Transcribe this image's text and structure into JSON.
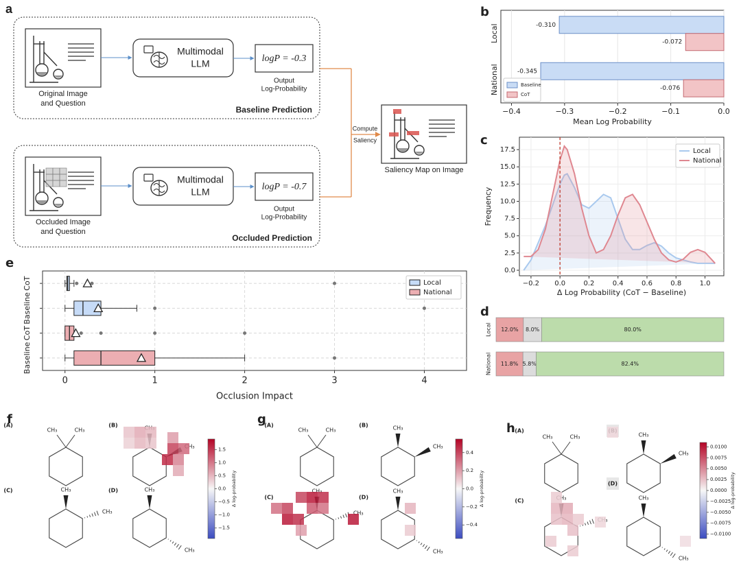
{
  "figure": {
    "panel_a": {
      "label": "a",
      "baseline": {
        "image_caption": [
          "Original Image",
          "and Question"
        ],
        "model": [
          "Multimodal",
          "LLM"
        ],
        "logp": "logP = -0.3",
        "output": [
          "Output",
          "Log-Probability"
        ],
        "title": "Baseline Prediction"
      },
      "occluded": {
        "image_caption": [
          "Occluded Image",
          "and Question"
        ],
        "model": [
          "Multimodal",
          "LLM"
        ],
        "logp": "logP = -0.7",
        "output": [
          "Output",
          "Log-Probability"
        ],
        "title": "Occluded Prediction"
      },
      "compute": [
        "Compute",
        "Saliency"
      ],
      "result": "Saliency Map on Image"
    }
  },
  "chart_data": [
    {
      "type": "hbar",
      "panel_label": "b",
      "categories": [
        "Local",
        "National"
      ],
      "series": [
        {
          "name": "Baseline",
          "color": "#c9dcf5",
          "edge": "#6b8fc7",
          "values": [
            -0.31,
            -0.345
          ],
          "value_labels": [
            "-0.310",
            "-0.345"
          ]
        },
        {
          "name": "CoT",
          "color": "#f2c4c6",
          "edge": "#c46a72",
          "values": [
            -0.072,
            -0.076
          ],
          "value_labels": [
            "-0.072",
            "-0.076"
          ]
        }
      ],
      "xlim": [
        -0.42,
        0
      ],
      "xticks": [
        {
          "value": -0.4,
          "label": "−0.4"
        },
        {
          "value": -0.3,
          "label": "−0.3"
        },
        {
          "value": -0.2,
          "label": "−0.2"
        },
        {
          "value": -0.1,
          "label": "−0.1"
        },
        {
          "value": 0,
          "label": "0.0"
        }
      ],
      "xlabel": "Mean Log Probability",
      "grid": true,
      "legend": "lower left"
    },
    {
      "type": "area",
      "panel_label": "c",
      "x": [
        -0.25,
        -0.2,
        -0.15,
        -0.1,
        -0.05,
        0,
        0.03,
        0.05,
        0.1,
        0.15,
        0.2,
        0.25,
        0.3,
        0.35,
        0.4,
        0.45,
        0.5,
        0.55,
        0.6,
        0.65,
        0.7,
        0.75,
        0.8,
        0.85,
        0.9,
        0.95,
        1.0,
        1.07
      ],
      "series": [
        {
          "name": "Local",
          "color": "#a9c9ee",
          "values": [
            0,
            1.5,
            4,
            6.5,
            9.5,
            12.5,
            13.8,
            14,
            12,
            9.5,
            9,
            10,
            11,
            10.5,
            7.5,
            4.5,
            3,
            3,
            3.6,
            4,
            3.5,
            2.5,
            1.8,
            1.5,
            1.2,
            1,
            1,
            1
          ]
        },
        {
          "name": "National",
          "color": "#df8790",
          "values": [
            2,
            2,
            3,
            6,
            11,
            16,
            18,
            17.5,
            14,
            9,
            5,
            2.5,
            3,
            5,
            8,
            10.5,
            11,
            9.5,
            7,
            4.5,
            2.5,
            1.5,
            1.2,
            1.6,
            2.6,
            3,
            2.6,
            1
          ]
        }
      ],
      "vline": 0,
      "vline_color": "#c0392b",
      "xlim": [
        -0.28,
        1.13
      ],
      "ylim": [
        -0.8,
        19.3
      ],
      "xticks": [
        {
          "value": -0.2,
          "label": "−0.2"
        },
        {
          "value": 0,
          "label": "0.0"
        },
        0.2,
        0.4,
        0.6,
        0.8,
        {
          "value": 1,
          "label": "1.0"
        }
      ],
      "yticks": [
        {
          "value": 0,
          "label": "0.0"
        },
        2.5,
        {
          "value": 5,
          "label": "5.0"
        },
        7.5,
        {
          "value": 10,
          "label": "10.0"
        },
        12.5,
        {
          "value": 15,
          "label": "15.0"
        },
        17.5
      ],
      "xlabel": "Δ Log Probability (CoT − Baseline)",
      "ylabel": "Frequency",
      "grid": true,
      "legend": "upper right"
    },
    {
      "type": "stacked_hbar",
      "panel_label": "d",
      "categories": [
        "Local",
        "National"
      ],
      "series": [
        {
          "color": "#e8a3a4",
          "label_color": "#ffffff",
          "values": [
            12.0,
            11.8
          ],
          "value_labels": [
            "12.0%",
            "11.8%"
          ]
        },
        {
          "color": "#dcdcdc",
          "label_color": "#222222",
          "values": [
            8.0,
            5.8
          ],
          "value_labels": [
            "8.0%",
            "5.8%"
          ]
        },
        {
          "color": "#bcdcab",
          "label_color": "#222222",
          "values": [
            80.0,
            82.4
          ],
          "value_labels": [
            "80.0%",
            "82.4%"
          ]
        }
      ]
    },
    {
      "type": "box",
      "panel_label": "e",
      "categories": [
        "CoT",
        "Baseline",
        "CoT",
        "Baseline"
      ],
      "series": [
        {
          "name": "Local",
          "color": "#c6dbf7",
          "boxes": [
            {
              "whislo": 0,
              "q1": 0.02,
              "med": 0.03,
              "q3": 0.05,
              "whishi": 0.1,
              "mean": 0.25,
              "fliers": [
                0.13,
                0.3,
                3.0
              ]
            },
            {
              "whislo": 0,
              "q1": 0.1,
              "med": 0.2,
              "q3": 0.4,
              "whishi": 0.8,
              "mean": 0.37,
              "fliers": [
                1.0,
                4.0
              ]
            }
          ]
        },
        {
          "name": "National",
          "color": "#ecaeb2",
          "boxes": [
            {
              "whislo": 0,
              "q1": 0.0,
              "med": 0.05,
              "q3": 0.1,
              "whishi": 0.12,
              "mean": 0.12,
              "fliers": [
                0.18,
                0.4,
                1.0,
                2.0
              ]
            },
            {
              "whislo": 0,
              "q1": 0.1,
              "med": 0.4,
              "q3": 1.0,
              "whishi": 2.0,
              "mean": 0.85,
              "fliers": [
                3.0
              ]
            }
          ]
        }
      ],
      "xlim": [
        -0.25,
        4.47
      ],
      "xticks": [
        0,
        1,
        2,
        3,
        4
      ],
      "xlabel": "Occlusion Impact",
      "grid": true,
      "legend": "upper right"
    }
  ],
  "molecules": [
    {
      "panel_label": "f",
      "options": [
        {
          "letter": "(A)",
          "groups": [
            "CH₃",
            "CH₃"
          ]
        },
        {
          "letter": "(B)",
          "groups": [
            "CH₃",
            "CH₃"
          ]
        },
        {
          "letter": "(C)",
          "groups": [
            "CH₃",
            "CH₃"
          ]
        },
        {
          "letter": "(D)",
          "groups": [
            "CH₃",
            "CH₃"
          ]
        }
      ],
      "heat": [
        0.4,
        0.6,
        0.5,
        0.3,
        0.5,
        0.4,
        0.7,
        1.4,
        1.1,
        1.6,
        0.9,
        0.6
      ],
      "colorbar": {
        "lim": [
          -1.9,
          1.9
        ],
        "ticks": [
          {
            "value": -1.5,
            "label": "−1.5"
          },
          {
            "value": -1,
            "label": "−1.0"
          },
          {
            "value": -0.5,
            "label": "−0.5"
          },
          {
            "value": 0,
            "label": "0.0"
          },
          0.5,
          {
            "value": 1,
            "label": "1.0"
          },
          1.5
        ],
        "label": "Δ log-probability"
      }
    },
    {
      "panel_label": "g",
      "options": [
        {
          "letter": "(A)",
          "groups": [
            "CH₃",
            "CH₃"
          ]
        },
        {
          "letter": "(B)",
          "groups": [
            "CH₃",
            "CH₃"
          ]
        },
        {
          "letter": "(C)",
          "groups": [
            "CH₃",
            "CH₃"
          ]
        },
        {
          "letter": "(D)",
          "groups": [
            "CH₃",
            "CH₃"
          ]
        }
      ],
      "heat": [
        0.3,
        0.4,
        0.5,
        0.45,
        0.4,
        0.5,
        0.45,
        0.35,
        0.3,
        0.2,
        0.5,
        0.15,
        0.1
      ],
      "colorbar": {
        "lim": [
          -0.55,
          0.55
        ],
        "ticks": [
          {
            "value": -0.4,
            "label": "−0.4"
          },
          {
            "value": -0.2,
            "label": "−0.2"
          },
          {
            "value": 0,
            "label": "0.0"
          },
          0.2,
          0.4
        ],
        "label": "Δ log-probability"
      }
    },
    {
      "panel_label": "h",
      "options": [
        {
          "letter": "(A)",
          "groups": [
            "CH₃",
            "CH₃"
          ]
        },
        {
          "letter": "(B)",
          "groups": [
            "CH₃",
            "CH₃"
          ]
        },
        {
          "letter": "(C)",
          "groups": [
            "CH₃",
            "CH₃"
          ]
        },
        {
          "letter": "(D)",
          "groups": [
            "CH₃",
            "CH₃"
          ]
        }
      ],
      "heat": [
        0.002,
        0.003,
        0.0035,
        0.0025,
        0.003,
        0.002,
        0.002,
        0.0025,
        0.0015,
        0.002,
        0.0012,
        0.0015
      ],
      "colorbar": {
        "lim": [
          -0.011,
          0.011
        ],
        "ticks": [
          {
            "value": -0.01,
            "label": "−0.0100"
          },
          {
            "value": -0.0075,
            "label": "−0.0075"
          },
          {
            "value": -0.005,
            "label": "−0.0050"
          },
          {
            "value": -0.0025,
            "label": "−0.0025"
          },
          {
            "value": 0,
            "label": "0.0000"
          },
          0.0025,
          {
            "value": 0.005,
            "label": "0.0050"
          },
          0.0075,
          {
            "value": 0.01,
            "label": "0.0100"
          }
        ],
        "label": "Δ log-probability"
      }
    }
  ]
}
